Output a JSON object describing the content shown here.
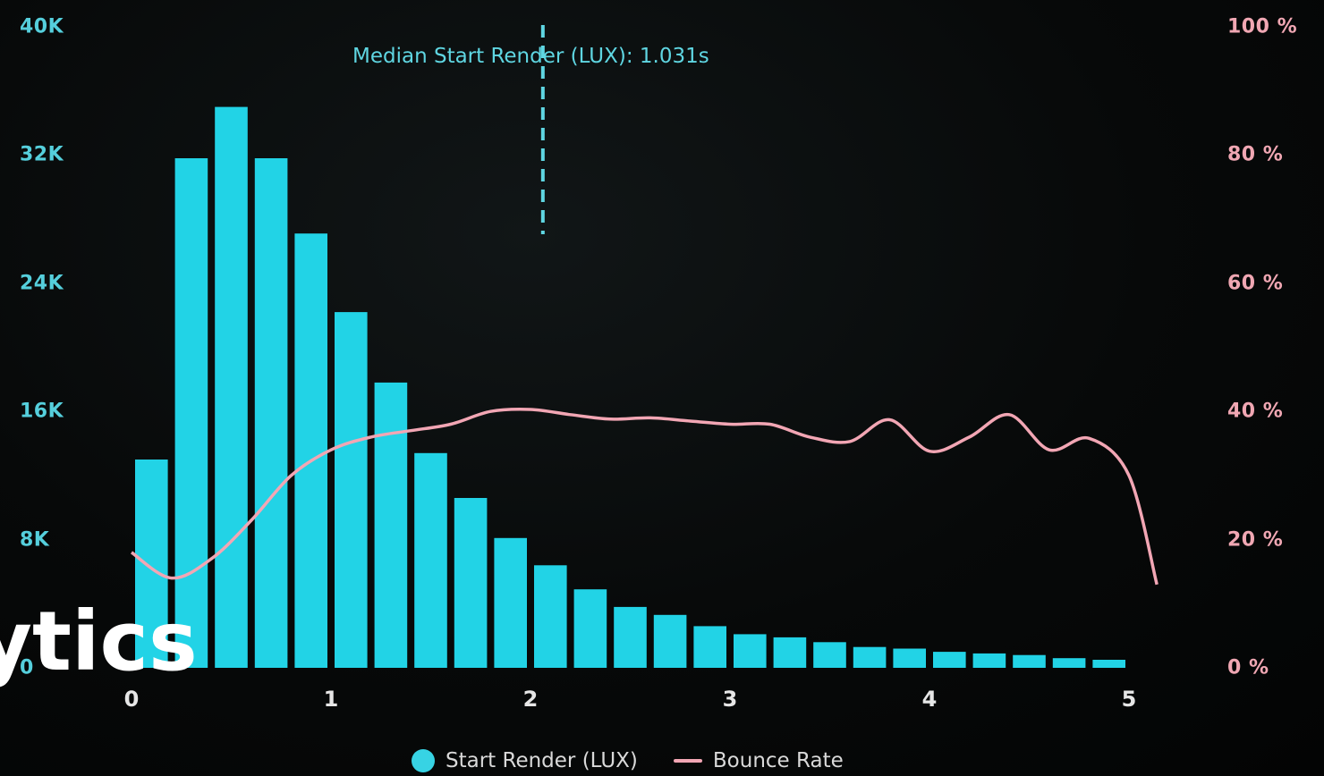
{
  "chart_data": {
    "type": "bar",
    "x": [
      0.05,
      0.15,
      0.25,
      0.35,
      0.45,
      0.55,
      0.65,
      0.75,
      0.85,
      0.95,
      1.05,
      1.15,
      1.25,
      1.35,
      1.45,
      1.55,
      1.65,
      1.75,
      1.85,
      1.95,
      2.05,
      2.15,
      2.25,
      2.35,
      2.45
    ],
    "series": [
      {
        "name": "Start Render (LUX)",
        "type": "bar",
        "axis": "left",
        "color": "#22d3e6",
        "values": [
          13000,
          31800,
          35000,
          31800,
          27100,
          22200,
          17800,
          13400,
          10600,
          8100,
          6400,
          4900,
          3800,
          3300,
          2600,
          2100,
          1900,
          1600,
          1300,
          1200,
          1000,
          900,
          800,
          600,
          500
        ]
      },
      {
        "name": "Bounce Rate",
        "type": "line",
        "axis": "right",
        "color": "#f2a6b4",
        "x": [
          0,
          0.1,
          0.2,
          0.3,
          0.4,
          0.5,
          0.6,
          0.7,
          0.8,
          0.9,
          1.0,
          1.1,
          1.2,
          1.3,
          1.4,
          1.5,
          1.6,
          1.7,
          1.8,
          1.9,
          2.0,
          2.1,
          2.2,
          2.3,
          2.4,
          2.5,
          2.57
        ],
        "values": [
          18,
          14,
          17,
          23,
          30,
          34,
          36,
          37,
          38,
          40,
          40.3,
          39.5,
          38.8,
          39,
          38.5,
          38,
          38,
          36,
          35.3,
          38.7,
          33.8,
          36,
          39.5,
          34,
          35.8,
          30,
          13
        ]
      }
    ],
    "x_tick_labels": [
      "0",
      "1",
      "2",
      "3",
      "4",
      "5"
    ],
    "left_axis": {
      "ticks": [
        "40K",
        "32K",
        "24K",
        "16K",
        "8K",
        "0"
      ],
      "ylim": [
        0,
        40000
      ]
    },
    "right_axis": {
      "ticks": [
        "100 %",
        "80 %",
        "60 %",
        "40 %",
        "20 %",
        "0 %"
      ],
      "ylim": [
        0,
        100
      ]
    },
    "xlim": [
      0,
      2.5
    ],
    "median": {
      "x": 1.031,
      "label": "Median Start Render (LUX): 1.031s"
    },
    "legend": [
      {
        "label": "Start Render (LUX)",
        "marker": "dot",
        "color": "#37d3e4"
      },
      {
        "label": "Bounce Rate",
        "marker": "line",
        "color": "#f2a6b4"
      }
    ],
    "legend_position": "bottom-center",
    "grid": false
  },
  "overlay_text": "ytics",
  "colors": {
    "background": "#050607",
    "bar": "#22d3e6",
    "left_tick": "#55cfdc",
    "right_tick": "#f0a7b3",
    "x_tick": "#e6e6e6"
  }
}
